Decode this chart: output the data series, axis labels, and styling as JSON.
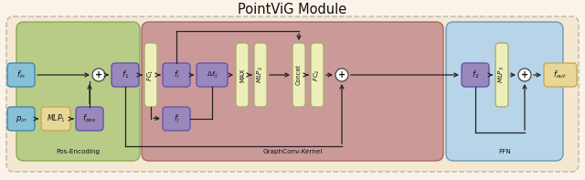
{
  "title": "PointViG Module",
  "title_fontsize": 10.5,
  "fig_bg": "#fbf3e8",
  "outer_box_color": "#f5e8d0",
  "outer_box_edge": "#bbbbbb",
  "pos_enc_bg": "#b8cc88",
  "pos_enc_edge": "#88aa55",
  "pos_enc_label": "Pos-Encoding",
  "gck_bg": "#cc9999",
  "gck_edge": "#aa6666",
  "gck_label": "GraphConv-Kernel",
  "ffn_bg": "#b8d4e8",
  "ffn_edge": "#6699bb",
  "ffn_label": "FFN",
  "blue_box_fc": "#88c0d8",
  "blue_box_ec": "#4488aa",
  "purple_box_fc": "#9988bb",
  "purple_box_ec": "#6655aa",
  "yellow_box_fc": "#e8d898",
  "yellow_box_ec": "#c8aa55",
  "tall_box_fc": "#eeeebb",
  "tall_box_ec": "#aaaa77",
  "circle_fc": "#ffffff",
  "circle_ec": "#444444",
  "arrow_color": "#222222",
  "text_color": "#111111",
  "lfs": 6.2,
  "sfs": 5.2,
  "tfs": 5.0
}
